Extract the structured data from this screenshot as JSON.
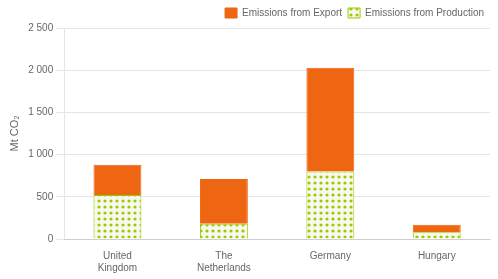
{
  "chart_data": {
    "type": "bar",
    "stacked": true,
    "categories": [
      "United\nKingdom",
      "The\nNetherlands",
      "Germany",
      "Hungary"
    ],
    "series": [
      {
        "name": "Emissions from Production",
        "color": "#99cc00",
        "values": [
          520,
          180,
          800,
          80
        ]
      },
      {
        "name": "Emissions from Export",
        "color": "#ee6611",
        "values": [
          360,
          530,
          1230,
          90
        ]
      }
    ],
    "ylabel": "Mt CO₂",
    "ylim": [
      0,
      2500
    ],
    "yticks": [
      0,
      500,
      {
        "value": 1000,
        "label": "1 000"
      },
      {
        "value": 1500,
        "label": "1 500"
      },
      {
        "value": 2000,
        "label": "2 000"
      },
      {
        "value": 2500,
        "label": "2 500"
      }
    ],
    "grid": true,
    "legend": "upper right"
  }
}
